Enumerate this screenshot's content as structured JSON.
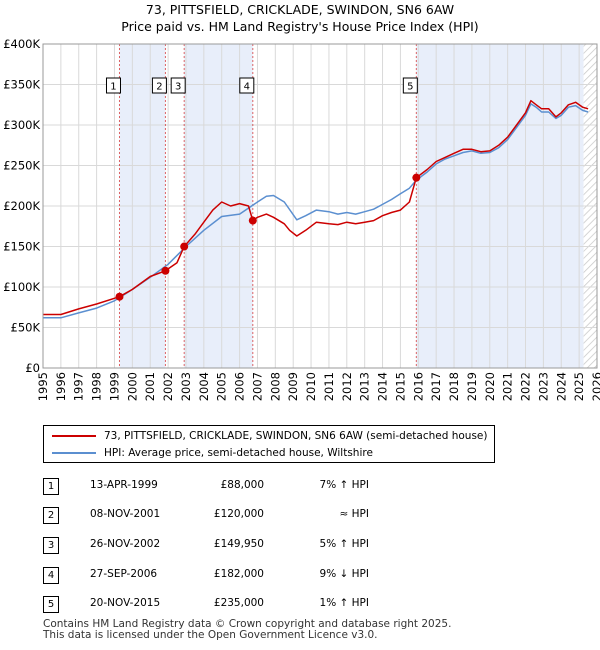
{
  "title": "73, PITTSFIELD, CRICKLADE, SWINDON, SN6 6AW",
  "subtitle": "Price paid vs. HM Land Registry's House Price Index (HPI)",
  "colors": {
    "price": "#cc0000",
    "hpi": "#5b8fd0",
    "shade": "#e8eefa",
    "grid": "#d9d9d9",
    "marker_line": "#cc0000"
  },
  "chart_data": {
    "type": "line",
    "title": "73, PITTSFIELD, CRICKLADE, SWINDON, SN6 6AW",
    "subtitle": "Price paid vs. HM Land Registry's House Price Index (HPI)",
    "xlabel": "",
    "ylabel": "",
    "xlim": [
      1995,
      2026
    ],
    "ylim": [
      0,
      400000
    ],
    "grid": true,
    "y_ticks": [
      0,
      50000,
      100000,
      150000,
      200000,
      250000,
      300000,
      350000,
      400000
    ],
    "y_tick_labels": [
      "£0",
      "£50K",
      "£100K",
      "£150K",
      "£200K",
      "£250K",
      "£300K",
      "£350K",
      "£400K"
    ],
    "x_ticks": [
      1995,
      1996,
      1997,
      1998,
      1999,
      2000,
      2001,
      2002,
      2003,
      2004,
      2005,
      2006,
      2007,
      2008,
      2009,
      2010,
      2011,
      2012,
      2013,
      2014,
      2015,
      2016,
      2017,
      2018,
      2019,
      2020,
      2021,
      2022,
      2023,
      2024,
      2025,
      2026
    ],
    "x_tick_labels": [
      "1995",
      "1996",
      "1997",
      "1998",
      "1999",
      "2000",
      "2001",
      "2002",
      "2003",
      "2004",
      "2005",
      "2006",
      "2007",
      "2008",
      "2009",
      "2010",
      "2011",
      "2012",
      "2013",
      "2014",
      "2015",
      "2016",
      "2017",
      "2018",
      "2019",
      "2020",
      "2021",
      "2022",
      "2023",
      "2024",
      "2025",
      "2026"
    ],
    "shaded_ranges": [
      [
        1999.28,
        2001.85
      ],
      [
        2002.9,
        2006.74
      ],
      [
        2015.89,
        2025.25
      ]
    ],
    "hatched_from": 2025.25,
    "series": [
      {
        "name": "73, PITTSFIELD, CRICKLADE, SWINDON, SN6 6AW (semi-detached house)",
        "color": "#cc0000",
        "x": [
          1995,
          1996,
          1997,
          1998,
          1999.28,
          2000,
          2001,
          2001.85,
          2002.5,
          2002.9,
          2003.5,
          2004,
          2004.5,
          2005,
          2005.5,
          2006,
          2006.5,
          2006.74,
          2007,
          2007.5,
          2007.9,
          2008.5,
          2008.8,
          2009.2,
          2009.7,
          2010.3,
          2011,
          2011.5,
          2012,
          2012.5,
          2013,
          2013.5,
          2014,
          2014.5,
          2015,
          2015.5,
          2015.89,
          2016.5,
          2017,
          2017.5,
          2018,
          2018.5,
          2019,
          2019.5,
          2020,
          2020.5,
          2021,
          2021.5,
          2022,
          2022.3,
          2022.6,
          2022.9,
          2023.3,
          2023.7,
          2024,
          2024.4,
          2024.8,
          2025.2,
          2025.5
        ],
        "values": [
          66000,
          66000,
          73000,
          79000,
          88000,
          97000,
          113000,
          120000,
          130000,
          149950,
          165000,
          180000,
          195000,
          205000,
          200000,
          203000,
          200000,
          182000,
          186000,
          190000,
          186000,
          178000,
          170000,
          163000,
          170000,
          180000,
          178000,
          177000,
          180000,
          178000,
          180000,
          182000,
          188000,
          192000,
          195000,
          205000,
          235000,
          245000,
          255000,
          260000,
          265000,
          270000,
          270000,
          267000,
          268000,
          275000,
          285000,
          300000,
          315000,
          330000,
          325000,
          320000,
          320000,
          310000,
          315000,
          325000,
          328000,
          322000,
          320000
        ]
      },
      {
        "name": "HPI: Average price, semi-detached house, Wiltshire",
        "color": "#5b8fd0",
        "x": [
          1995,
          1996,
          1997,
          1998,
          1999,
          2000,
          2001,
          2002,
          2003,
          2004,
          2005,
          2006,
          2007,
          2007.5,
          2007.9,
          2008.5,
          2009.2,
          2009.7,
          2010.3,
          2011,
          2011.5,
          2012,
          2012.5,
          2013,
          2013.5,
          2014,
          2014.5,
          2015,
          2015.5,
          2015.89,
          2016.5,
          2017,
          2017.5,
          2018,
          2018.5,
          2019,
          2019.5,
          2020,
          2020.5,
          2021,
          2021.5,
          2022,
          2022.3,
          2022.6,
          2022.9,
          2023.3,
          2023.7,
          2024,
          2024.4,
          2024.8,
          2025.2,
          2025.5
        ],
        "values": [
          62000,
          62000,
          68000,
          74000,
          83000,
          97000,
          112000,
          128000,
          150000,
          170000,
          187000,
          190000,
          205000,
          212000,
          213000,
          205000,
          183000,
          188000,
          195000,
          193000,
          190000,
          192000,
          190000,
          193000,
          196000,
          202000,
          208000,
          215000,
          222000,
          232000,
          242000,
          252000,
          258000,
          262000,
          266000,
          268000,
          265000,
          266000,
          272000,
          282000,
          297000,
          312000,
          326000,
          322000,
          316000,
          316000,
          308000,
          312000,
          322000,
          324000,
          318000,
          316000
        ]
      }
    ],
    "sale_markers": [
      {
        "label": "1",
        "x": 1999.28,
        "value": 88000
      },
      {
        "label": "2",
        "x": 2001.85,
        "value": 120000
      },
      {
        "label": "3",
        "x": 2002.9,
        "value": 149950
      },
      {
        "label": "4",
        "x": 2006.74,
        "value": 182000
      },
      {
        "label": "5",
        "x": 2015.89,
        "value": 235000
      }
    ]
  },
  "legend": {
    "price_label": "73, PITTSFIELD, CRICKLADE, SWINDON, SN6 6AW (semi-detached house)",
    "hpi_label": "HPI: Average price, semi-detached house, Wiltshire"
  },
  "transactions": [
    {
      "num": "1",
      "date": "13-APR-1999",
      "price": "£88,000",
      "hpi": "7% ↑ HPI"
    },
    {
      "num": "2",
      "date": "08-NOV-2001",
      "price": "£120,000",
      "hpi": "≈ HPI"
    },
    {
      "num": "3",
      "date": "26-NOV-2002",
      "price": "£149,950",
      "hpi": "5% ↑ HPI"
    },
    {
      "num": "4",
      "date": "27-SEP-2006",
      "price": "£182,000",
      "hpi": "9% ↓ HPI"
    },
    {
      "num": "5",
      "date": "20-NOV-2015",
      "price": "£235,000",
      "hpi": "1% ↑ HPI"
    }
  ],
  "footer": {
    "line1": "Contains HM Land Registry data © Crown copyright and database right 2025.",
    "line2": "This data is licensed under the Open Government Licence v3.0."
  }
}
